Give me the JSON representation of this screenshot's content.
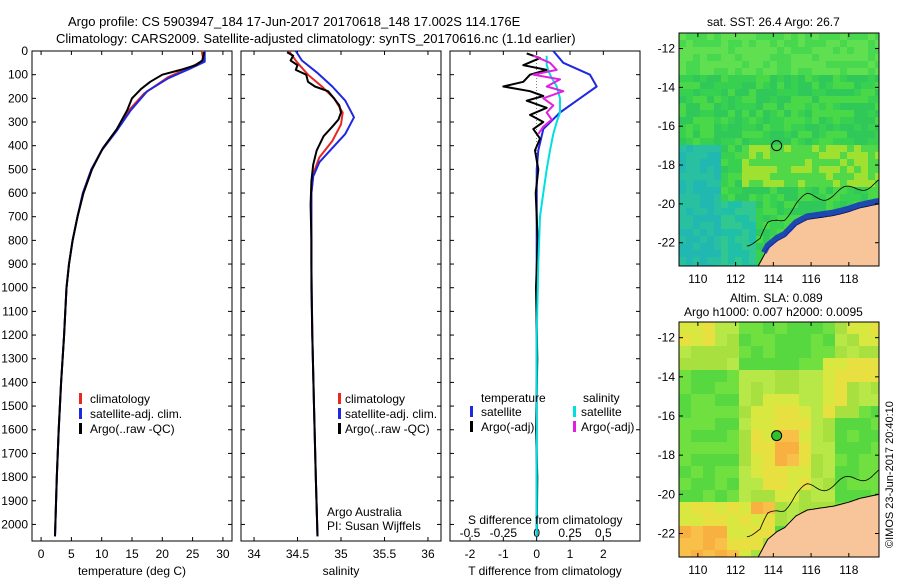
{
  "header": {
    "line1": "Argo profile: CS 5903947_184 17-Jun-2017 20170618_148 17.002S 114.176E",
    "line2": "Climatology: CARS2009. Satellite-adjusted climatology: synTS_20170616.nc (1.1d earlier)"
  },
  "colors": {
    "climatology": "#e8281e",
    "satellite": "#1e28e0",
    "argo": "#000000",
    "sal_satellite": "#00e0e0",
    "sal_argo": "#e020e0",
    "land": "#f8c59a"
  },
  "maps": {
    "sst_title": "sat. SST: 26.4 Argo: 26.7",
    "sla_title1": "Altim. SLA: 0.089",
    "sla_title2": "Argo h1000: 0.007 h2000: 0.0095",
    "float_lon": 114.176,
    "float_lat": -17.002,
    "xlim": [
      109,
      119.6
    ],
    "ylim": [
      -23.2,
      -11.2
    ],
    "xticks": [
      "110",
      "112",
      "114",
      "116",
      "118"
    ],
    "yticks": [
      "-12",
      "-14",
      "-16",
      "-18",
      "-20",
      "-22"
    ]
  },
  "credit": "©IMOS 23-Jun-2017 20:40:10",
  "chart_data": [
    {
      "type": "line",
      "xlabel": "temperature (deg C)",
      "ylabel": "",
      "xlim": [
        -1.5,
        31.5
      ],
      "ylim": [
        2070,
        0
      ],
      "xticks": [
        "0",
        "5",
        "10",
        "15",
        "20",
        "25",
        "30"
      ],
      "yticks": [
        "0",
        "100",
        "200",
        "300",
        "400",
        "500",
        "600",
        "700",
        "800",
        "900",
        "1000",
        "1100",
        "1200",
        "1300",
        "1400",
        "1500",
        "1600",
        "1700",
        "1800",
        "1900",
        "2000"
      ],
      "legend": [
        "climatology",
        "satellite-adj. clim.",
        "Argo(..raw -QC)"
      ],
      "series": [
        {
          "name": "climatology",
          "color": "#e8281e",
          "points": [
            [
              26.5,
              0
            ],
            [
              26.8,
              40
            ],
            [
              24.5,
              70
            ],
            [
              21,
              110
            ],
            [
              17,
              180
            ],
            [
              14.5,
              250
            ],
            [
              12.3,
              340
            ],
            [
              10,
              420
            ],
            [
              8.3,
              500
            ],
            [
              6.9,
              600
            ],
            [
              6.0,
              700
            ],
            [
              5.2,
              800
            ],
            [
              4.6,
              900
            ],
            [
              4.2,
              1000
            ],
            [
              3.8,
              1200
            ],
            [
              3.3,
              1400
            ],
            [
              2.9,
              1600
            ],
            [
              2.6,
              1800
            ],
            [
              2.3,
              2050
            ]
          ]
        },
        {
          "name": "satellite-adj. clim.",
          "color": "#1e28e0",
          "points": [
            [
              27,
              0
            ],
            [
              27,
              45
            ],
            [
              24.5,
              75
            ],
            [
              21,
              115
            ],
            [
              17.5,
              170
            ],
            [
              14.8,
              250
            ],
            [
              12.4,
              340
            ],
            [
              10,
              420
            ],
            [
              8.3,
              500
            ],
            [
              6.9,
              600
            ],
            [
              6.0,
              700
            ],
            [
              5.2,
              800
            ],
            [
              4.6,
              900
            ],
            [
              4.2,
              1000
            ],
            [
              3.8,
              1200
            ],
            [
              3.3,
              1400
            ],
            [
              2.9,
              1600
            ],
            [
              2.6,
              1800
            ],
            [
              2.3,
              2050
            ]
          ]
        },
        {
          "name": "Argo(..raw -QC)",
          "color": "#000000",
          "points": [
            [
              26.9,
              5
            ],
            [
              26.6,
              40
            ],
            [
              25.5,
              60
            ],
            [
              23,
              80
            ],
            [
              20,
              100
            ],
            [
              18,
              130
            ],
            [
              16.5,
              160
            ],
            [
              15,
              200
            ],
            [
              14.2,
              250
            ],
            [
              12.5,
              330
            ],
            [
              10.2,
              410
            ],
            [
              8.4,
              500
            ],
            [
              7.0,
              600
            ],
            [
              6.0,
              700
            ],
            [
              5.2,
              800
            ],
            [
              4.6,
              900
            ],
            [
              4.2,
              1000
            ],
            [
              3.8,
              1200
            ],
            [
              3.3,
              1400
            ],
            [
              2.9,
              1600
            ],
            [
              2.6,
              1800
            ],
            [
              2.3,
              2050
            ]
          ]
        }
      ]
    },
    {
      "type": "line",
      "xlabel": "salinity",
      "ylabel": "",
      "xlim": [
        33.85,
        36.15
      ],
      "ylim": [
        2070,
        0
      ],
      "xticks": [
        "34",
        "34.5",
        "35",
        "35.5",
        "36"
      ],
      "legend": [
        "climatology",
        "satellite-adj. clim.",
        "Argo(..raw -QC)"
      ],
      "annotation": [
        "Argo Australia",
        "PI: Susan Wijffels"
      ],
      "series": [
        {
          "name": "climatology",
          "color": "#e8281e",
          "points": [
            [
              34.4,
              0
            ],
            [
              34.5,
              50
            ],
            [
              34.62,
              100
            ],
            [
              34.78,
              150
            ],
            [
              34.92,
              200
            ],
            [
              35.02,
              260
            ],
            [
              35.0,
              310
            ],
            [
              34.9,
              380
            ],
            [
              34.75,
              450
            ],
            [
              34.68,
              520
            ],
            [
              34.66,
              600
            ],
            [
              34.66,
              700
            ],
            [
              34.66,
              900
            ],
            [
              34.67,
              1200
            ],
            [
              34.69,
              1500
            ],
            [
              34.71,
              1800
            ],
            [
              34.73,
              2050
            ]
          ]
        },
        {
          "name": "satellite-adj. clim.",
          "color": "#1e28e0",
          "points": [
            [
              34.48,
              0
            ],
            [
              34.55,
              40
            ],
            [
              34.72,
              90
            ],
            [
              34.9,
              150
            ],
            [
              35.05,
              210
            ],
            [
              35.15,
              280
            ],
            [
              35.05,
              350
            ],
            [
              34.9,
              410
            ],
            [
              34.75,
              470
            ],
            [
              34.68,
              530
            ],
            [
              34.66,
              600
            ],
            [
              34.66,
              700
            ],
            [
              34.66,
              900
            ],
            [
              34.67,
              1200
            ],
            [
              34.69,
              1500
            ],
            [
              34.71,
              1800
            ],
            [
              34.73,
              2050
            ]
          ]
        },
        {
          "name": "Argo(..raw -QC)",
          "color": "#000000",
          "points": [
            [
              34.38,
              5
            ],
            [
              34.45,
              20
            ],
            [
              34.42,
              40
            ],
            [
              34.5,
              60
            ],
            [
              34.48,
              80
            ],
            [
              34.6,
              100
            ],
            [
              34.62,
              130
            ],
            [
              34.7,
              150
            ],
            [
              34.85,
              170
            ],
            [
              34.92,
              200
            ],
            [
              34.98,
              230
            ],
            [
              35.0,
              260
            ],
            [
              34.97,
              290
            ],
            [
              34.9,
              320
            ],
            [
              34.8,
              360
            ],
            [
              34.72,
              420
            ],
            [
              34.68,
              480
            ],
            [
              34.66,
              550
            ],
            [
              34.65,
              650
            ],
            [
              34.66,
              800
            ],
            [
              34.66,
              1000
            ],
            [
              34.67,
              1200
            ],
            [
              34.69,
              1500
            ],
            [
              34.71,
              1800
            ],
            [
              34.73,
              2050
            ]
          ]
        }
      ]
    },
    {
      "type": "line",
      "xlabel": "T difference from climatology",
      "xlabel_top": "S difference from climatology",
      "xlim": [
        -2.6,
        3.1
      ],
      "ylim": [
        2070,
        0
      ],
      "xticks": [
        "-2",
        "-1",
        "0",
        "1",
        "2"
      ],
      "xticks_top": [
        "-0.5",
        "-0.25",
        "0",
        "0.25",
        "0.5"
      ],
      "legend_headers": [
        "temperature",
        "salinity"
      ],
      "legend": [
        "satellite",
        "Argo(-adj)",
        "satellite",
        "Argo(-adj)"
      ],
      "series": [
        {
          "name": "temperature satellite",
          "color": "#1e28e0",
          "points": [
            [
              0.5,
              0
            ],
            [
              0.8,
              50
            ],
            [
              1.6,
              100
            ],
            [
              1.8,
              150
            ],
            [
              1.3,
              200
            ],
            [
              0.7,
              260
            ],
            [
              0.2,
              330
            ],
            [
              0.05,
              420
            ],
            [
              0,
              500
            ],
            [
              0,
              700
            ],
            [
              0,
              1000
            ],
            [
              0,
              1500
            ],
            [
              0,
              2050
            ]
          ]
        },
        {
          "name": "temperature Argo(-adj)",
          "color": "#000000",
          "points": [
            [
              -0.3,
              10
            ],
            [
              0.1,
              30
            ],
            [
              -0.4,
              60
            ],
            [
              0.3,
              80
            ],
            [
              -0.2,
              100
            ],
            [
              -0.4,
              130
            ],
            [
              -1.0,
              150
            ],
            [
              -0.2,
              170
            ],
            [
              0.2,
              190
            ],
            [
              -0.3,
              210
            ],
            [
              0.3,
              240
            ],
            [
              -0.2,
              270
            ],
            [
              0.2,
              300
            ],
            [
              -0.1,
              330
            ],
            [
              0.1,
              370
            ],
            [
              -0.05,
              420
            ],
            [
              0.05,
              500
            ],
            [
              -0.03,
              600
            ],
            [
              0.03,
              800
            ],
            [
              -0.02,
              1000
            ],
            [
              0.02,
              1300
            ],
            [
              -0.02,
              1600
            ],
            [
              0.02,
              1800
            ],
            [
              0,
              2050
            ]
          ]
        },
        {
          "name": "salinity satellite",
          "color": "#00e0e0",
          "points": [
            [
              0.3,
              20
            ],
            [
              0.3,
              60
            ],
            [
              0.4,
              100
            ],
            [
              0.6,
              150
            ],
            [
              0.7,
              200
            ],
            [
              0.7,
              260
            ],
            [
              0.6,
              300
            ],
            [
              0.5,
              350
            ],
            [
              0.4,
              420
            ],
            [
              0.3,
              500
            ],
            [
              0.2,
              600
            ],
            [
              0.1,
              700
            ],
            [
              0.05,
              900
            ],
            [
              0,
              1200
            ],
            [
              0,
              1600
            ],
            [
              0,
              2050
            ]
          ]
        },
        {
          "name": "salinity Argo(-adj)",
          "color": "#e020e0",
          "points": [
            [
              -0.1,
              20
            ],
            [
              0.4,
              50
            ],
            [
              0.6,
              80
            ],
            [
              -0.1,
              100
            ],
            [
              0.7,
              120
            ],
            [
              0.3,
              150
            ],
            [
              0.8,
              170
            ],
            [
              0.2,
              200
            ],
            [
              0.5,
              230
            ],
            [
              0.3,
              260
            ],
            [
              0.45,
              290
            ],
            [
              0.2,
              320
            ],
            [
              0.05,
              350
            ]
          ]
        }
      ]
    }
  ]
}
